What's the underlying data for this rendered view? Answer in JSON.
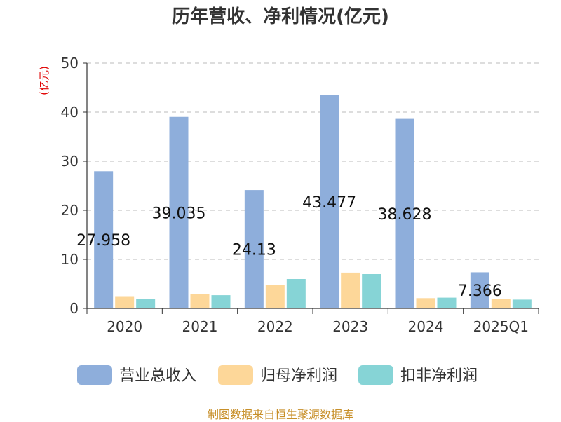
{
  "chart_data": {
    "type": "bar",
    "title": "历年营收、净利情况(亿元)",
    "ylabel": "(亿元)",
    "xlabel": "",
    "ylim": [
      0,
      50
    ],
    "yticks": [
      0,
      10,
      20,
      30,
      40,
      50
    ],
    "grid": true,
    "legend_position": "bottom",
    "categories": [
      "2020",
      "2021",
      "2022",
      "2023",
      "2024",
      "2025Q1"
    ],
    "series": [
      {
        "name": "营业总收入",
        "color": "#8eaedb",
        "values": [
          27.958,
          39.035,
          24.13,
          43.477,
          38.628,
          7.366
        ],
        "data_labels": [
          "27.958",
          "39.035",
          "24.13",
          "43.477",
          "38.628",
          "7.366"
        ]
      },
      {
        "name": "归母净利润",
        "color": "#fdd799",
        "values": [
          2.5,
          3.0,
          4.8,
          7.3,
          2.1,
          1.9
        ]
      },
      {
        "name": "扣非净利润",
        "color": "#86d4d6",
        "values": [
          1.9,
          2.7,
          6.0,
          7.0,
          2.2,
          1.8
        ]
      }
    ]
  },
  "footer": "制图数据来自恒生聚源数据库"
}
